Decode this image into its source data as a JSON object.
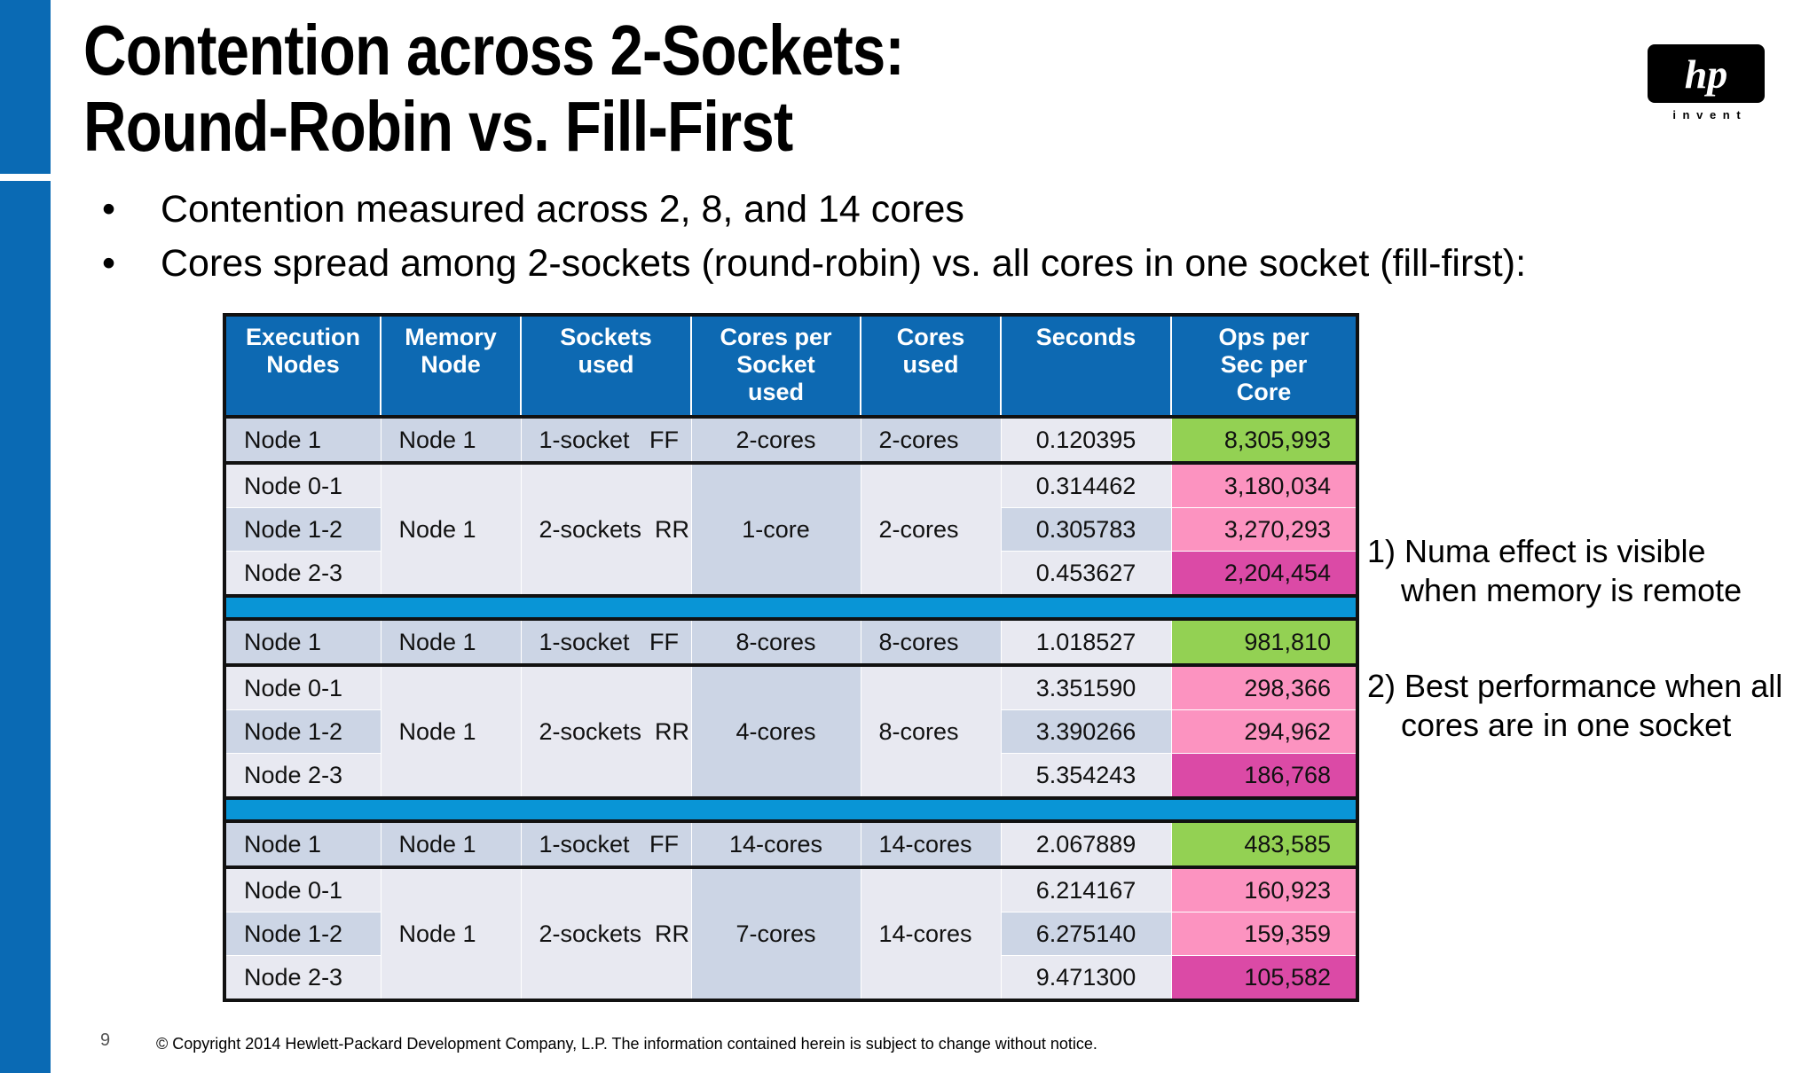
{
  "header": {
    "title_lines": [
      "Contention across 2-Sockets:",
      "Round-Robin vs. Fill-First"
    ]
  },
  "logo": {
    "mark": "hp",
    "tagline": "i n v e n t"
  },
  "bullets": [
    "Contention measured across 2, 8, and 14 cores",
    "Cores spread among 2-sockets (round-robin) vs. all cores in one socket (fill-first):"
  ],
  "table": {
    "headers": [
      [
        "Execution",
        "Nodes"
      ],
      [
        "Memory",
        "Node"
      ],
      [
        "Sockets",
        "used"
      ],
      [
        "Cores per",
        "Socket",
        "used"
      ],
      [
        "Cores",
        "used"
      ],
      [
        "Seconds"
      ],
      [
        "Ops  per",
        "Sec per",
        "Core"
      ]
    ],
    "groups": [
      {
        "ff": {
          "exec": "Node 1",
          "mem": "Node 1",
          "sockets": "1-socket   FF",
          "cps": "2-cores",
          "cores": "2-cores",
          "seconds": "0.120395",
          "ops": "8,305,993"
        },
        "rr": {
          "exec": [
            "Node 0-1",
            "Node 1-2",
            "Node 2-3"
          ],
          "mem": "Node 1",
          "sockets": "2-sockets  RR",
          "cps": "1-core",
          "cores": "2-cores",
          "seconds": [
            "0.314462",
            "0.305783",
            "0.453627"
          ],
          "ops": [
            "3,180,034",
            "3,270,293",
            "2,204,454"
          ]
        }
      },
      {
        "ff": {
          "exec": "Node 1",
          "mem": "Node 1",
          "sockets": "1-socket   FF",
          "cps": "8-cores",
          "cores": "8-cores",
          "seconds": "1.018527",
          "ops": "981,810"
        },
        "rr": {
          "exec": [
            "Node 0-1",
            "Node 1-2",
            "Node 2-3"
          ],
          "mem": "Node 1",
          "sockets": "2-sockets  RR",
          "cps": "4-cores",
          "cores": "8-cores",
          "seconds": [
            "3.351590",
            "3.390266",
            "5.354243"
          ],
          "ops": [
            "298,366",
            "294,962",
            "186,768"
          ]
        }
      },
      {
        "ff": {
          "exec": "Node 1",
          "mem": "Node 1",
          "sockets": "1-socket   FF",
          "cps": "14-cores",
          "cores": "14-cores",
          "seconds": "2.067889",
          "ops": "483,585"
        },
        "rr": {
          "exec": [
            "Node 0-1",
            "Node 1-2",
            "Node 2-3"
          ],
          "mem": "Node 1",
          "sockets": "2-sockets  RR",
          "cps": "7-cores",
          "cores": "14-cores",
          "seconds": [
            "6.214167",
            "6.275140",
            "9.471300"
          ],
          "ops": [
            "160,923",
            "159,359",
            "105,582"
          ]
        }
      }
    ]
  },
  "notes": [
    [
      "1) Numa effect is visible",
      "when memory is remote"
    ],
    [
      "2) Best performance when all",
      "cores are in one socket"
    ]
  ],
  "footer": {
    "page": "9",
    "copyright": "© Copyright 2014 Hewlett-Packard Development Company, L.P.  The information contained herein is subject to change without notice."
  }
}
